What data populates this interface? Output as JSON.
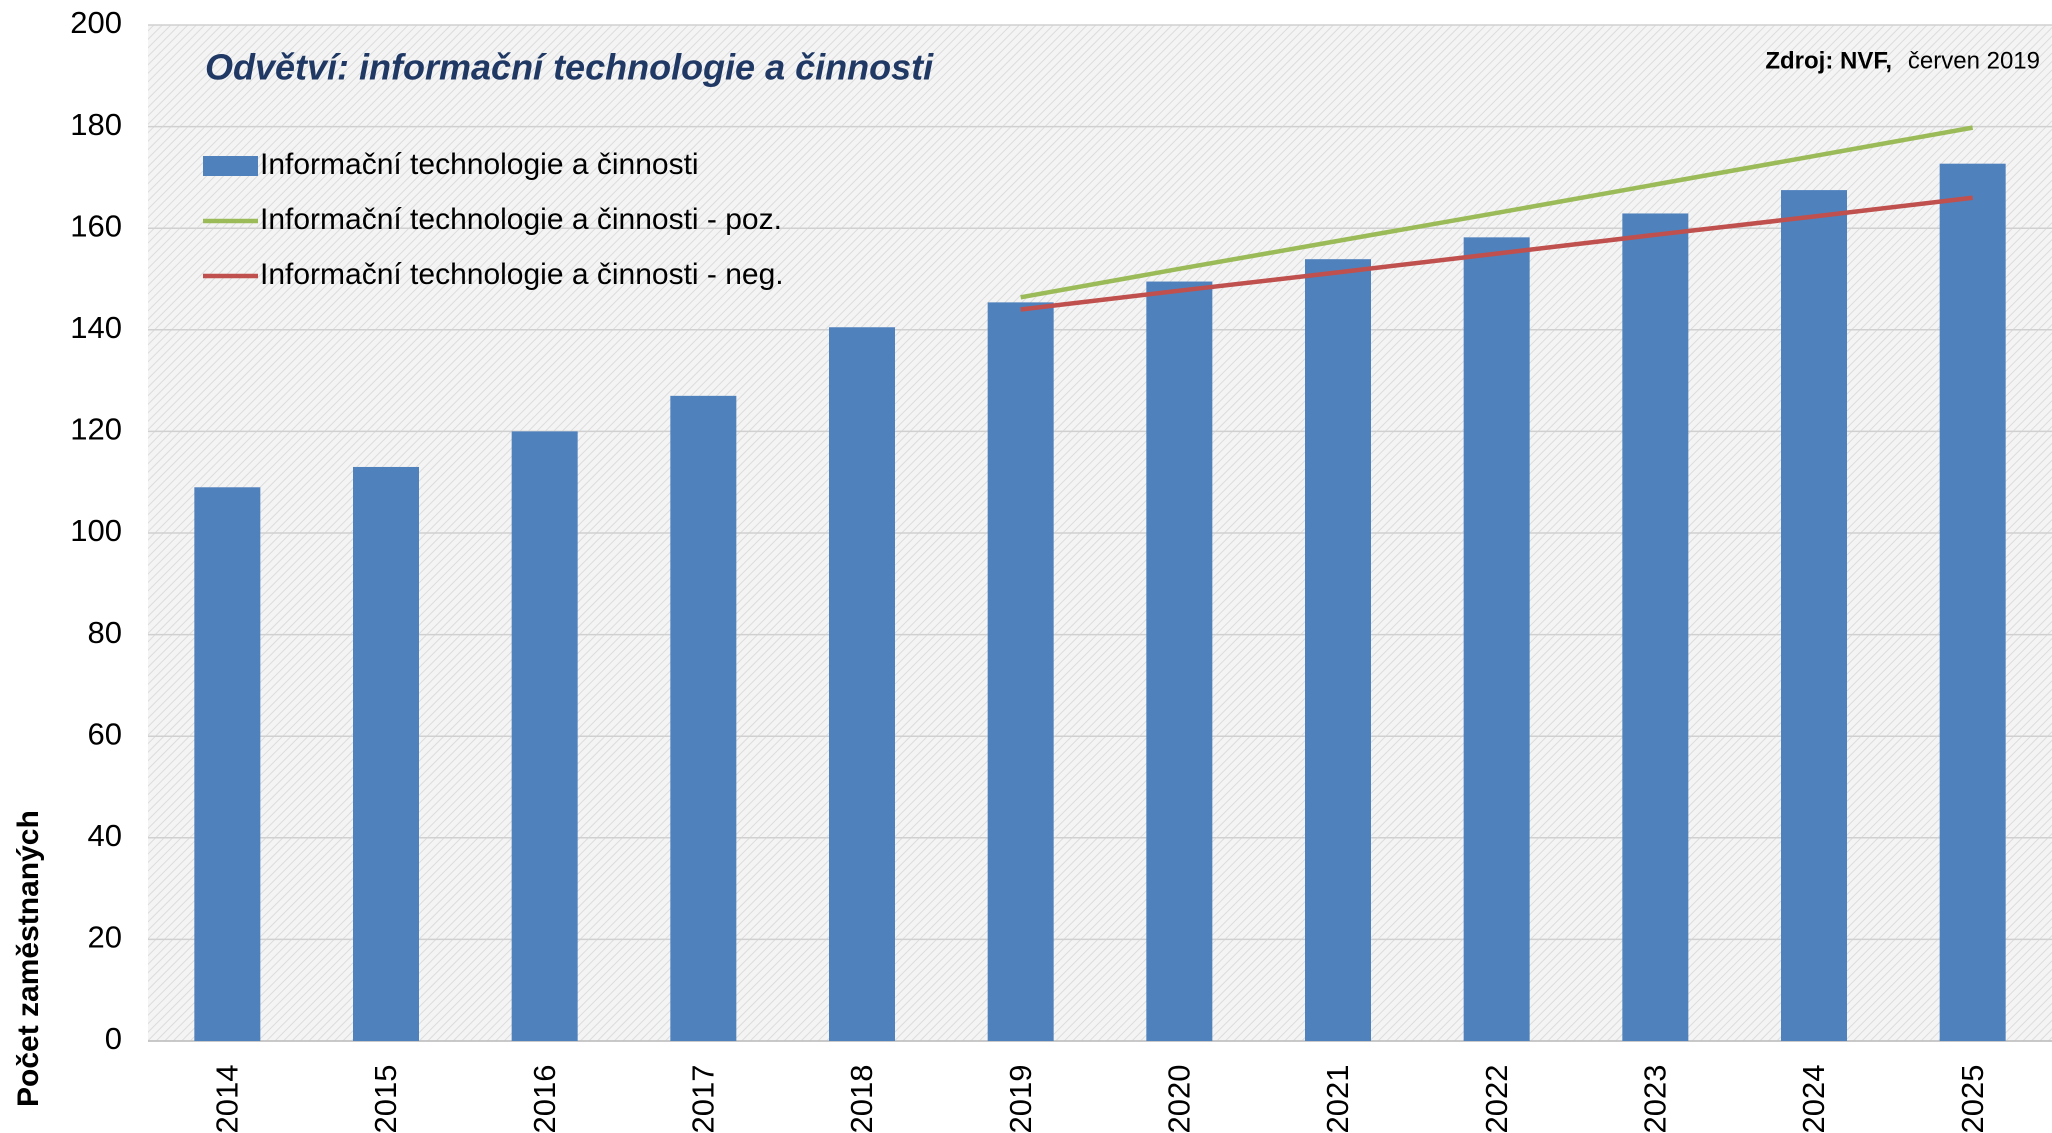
{
  "chart_data": {
    "type": "bar",
    "title": "Odvětví: informační technologie a činnosti",
    "source_label": "Zdroj: NVF,",
    "source_date": "červen 2019",
    "y_label": "Počet zaměstnaných",
    "categories": [
      "2014",
      "2015",
      "2016",
      "2017",
      "2018",
      "2019",
      "2020",
      "2021",
      "2022",
      "2023",
      "2024",
      "2025"
    ],
    "series": [
      {
        "name": "Informační technologie a činnosti",
        "type": "bar",
        "color": "#4f81bd",
        "values": [
          109,
          113,
          120,
          127,
          140.5,
          145.4,
          149.5,
          153.9,
          158.2,
          162.9,
          167.5,
          172.7
        ]
      },
      {
        "name": "Informační technologie a činnosti - poz.",
        "type": "line",
        "color": "#9bbb59",
        "values": [
          null,
          null,
          null,
          null,
          null,
          146.4,
          152,
          157.5,
          163,
          168.6,
          174.2,
          179.8
        ]
      },
      {
        "name": "Informační technologie a činnosti - neg.",
        "type": "line",
        "color": "#c0504d",
        "values": [
          null,
          null,
          null,
          null,
          null,
          144,
          147.7,
          151.3,
          155,
          158.7,
          162.3,
          166
        ]
      }
    ],
    "ylim": [
      0,
      200
    ],
    "yticks": [
      0,
      20,
      40,
      60,
      80,
      100,
      120,
      140,
      160,
      180,
      200
    ],
    "grid": true,
    "legend": "top-left"
  }
}
